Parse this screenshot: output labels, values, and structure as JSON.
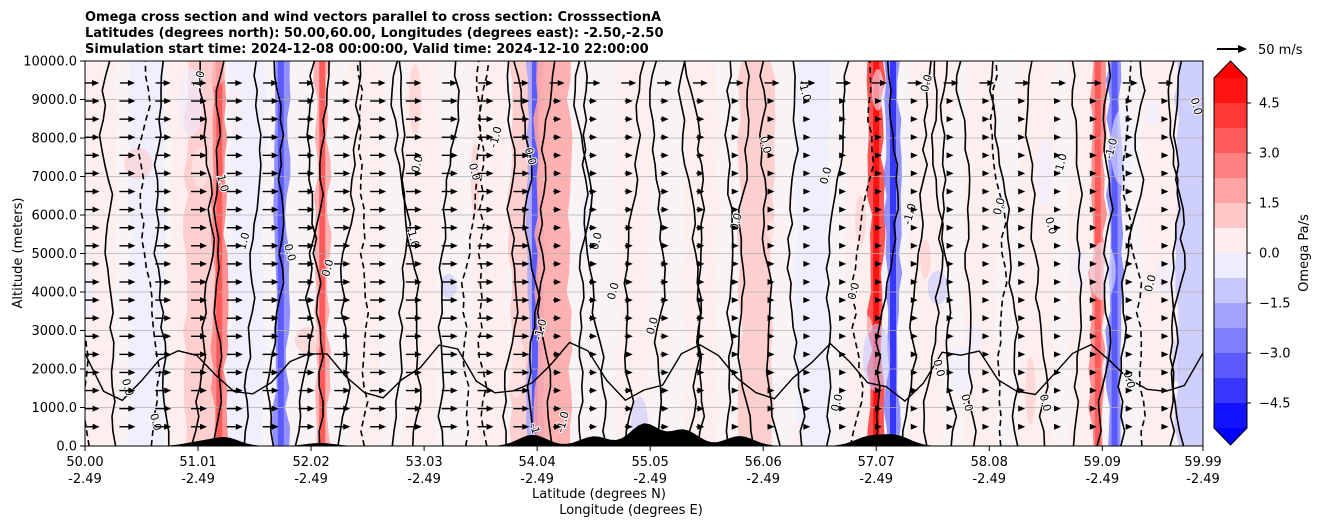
{
  "chart_data": {
    "type": "heatmap",
    "title_lines": [
      "Omega cross section and wind vectors parallel to cross section: CrosssectionA",
      "Latitudes (degrees north): 50.00,60.00, Longitudes (degrees east): -2.50,-2.50",
      "Simulation start time: 2024-12-08 00:00:00, Valid time: 2024-12-10 22:00:00"
    ],
    "ylabel": "Altitude (meters)",
    "xlabel_lines": [
      "Latitude (degrees N)",
      "Longitude (degrees E)"
    ],
    "ylim": [
      0,
      10000
    ],
    "yticks": [
      0,
      1000,
      2000,
      3000,
      4000,
      5000,
      6000,
      7000,
      8000,
      9000,
      10000
    ],
    "ytick_labels": [
      "0.0",
      "1000.0",
      "2000.0",
      "3000.0",
      "4000.0",
      "5000.0",
      "6000.0",
      "7000.0",
      "8000.0",
      "9000.0",
      "10000.0"
    ],
    "xlim": [
      50.0,
      59.99
    ],
    "xticks": [
      50.0,
      51.01,
      52.02,
      53.03,
      54.04,
      55.05,
      56.06,
      57.07,
      58.08,
      59.09,
      59.99
    ],
    "xtick_lat_labels": [
      "50.00",
      "51.01",
      "52.02",
      "53.03",
      "54.04",
      "55.05",
      "56.06",
      "57.07",
      "58.08",
      "59.09",
      "59.99"
    ],
    "xtick_lon_labels": [
      "-2.49",
      "-2.49",
      "-2.49",
      "-2.49",
      "-2.49",
      "-2.49",
      "-2.49",
      "-2.49",
      "-2.49",
      "-2.49",
      "-2.49"
    ],
    "grid": "horizontal",
    "colorbar": {
      "label": "Omega Pa/s",
      "range": [
        -5.25,
        5.25
      ],
      "ticks": [
        -4.5,
        -3.0,
        -1.5,
        0.0,
        1.5,
        3.0,
        4.5
      ],
      "tick_labels": [
        "−4.5",
        "−3.0",
        "−1.5",
        "0.0",
        "1.5",
        "3.0",
        "4.5"
      ],
      "colormap": "bwr",
      "extend": "both"
    },
    "quiver_key": {
      "label": "50 m/s",
      "value": 50
    },
    "contour_levels": [
      -1.0,
      0.0,
      1.0
    ],
    "contour_labels": [
      "-1.0",
      "0.0",
      "1.0"
    ],
    "strong_wind_below_m": 9800,
    "strong_wind_lat_max": 53.9,
    "terrain_peaks": [
      {
        "lat": 51.0,
        "height": 90
      },
      {
        "lat": 51.25,
        "height": 220
      },
      {
        "lat": 52.1,
        "height": 80
      },
      {
        "lat": 54.0,
        "height": 290
      },
      {
        "lat": 54.55,
        "height": 250
      },
      {
        "lat": 55.0,
        "height": 580
      },
      {
        "lat": 55.35,
        "height": 420
      },
      {
        "lat": 55.85,
        "height": 260
      },
      {
        "lat": 57.0,
        "height": 230
      },
      {
        "lat": 57.25,
        "height": 260
      }
    ],
    "omega_columns": [
      {
        "lat": 50.15,
        "value": 0.3
      },
      {
        "lat": 50.55,
        "value": -0.5
      },
      {
        "lat": 50.9,
        "value": 0.6
      },
      {
        "lat": 51.05,
        "value": 1.4
      },
      {
        "lat": 51.2,
        "value": 2.4
      },
      {
        "lat": 51.45,
        "value": -0.6
      },
      {
        "lat": 51.75,
        "value": -2.4
      },
      {
        "lat": 52.12,
        "value": 2.0
      },
      {
        "lat": 52.5,
        "value": 0.3
      },
      {
        "lat": 53.0,
        "value": 0.5
      },
      {
        "lat": 53.6,
        "value": 0.3
      },
      {
        "lat": 53.95,
        "value": 1.2
      },
      {
        "lat": 54.02,
        "value": -2.2
      },
      {
        "lat": 54.18,
        "value": 1.5
      },
      {
        "lat": 54.9,
        "value": 0.4
      },
      {
        "lat": 55.5,
        "value": 0.3
      },
      {
        "lat": 56.0,
        "value": 0.8
      },
      {
        "lat": 56.5,
        "value": -0.4
      },
      {
        "lat": 56.95,
        "value": 0.5
      },
      {
        "lat": 57.07,
        "value": 4.2
      },
      {
        "lat": 57.22,
        "value": -3.0
      },
      {
        "lat": 57.52,
        "value": 0.3
      },
      {
        "lat": 58.0,
        "value": 0.6
      },
      {
        "lat": 58.5,
        "value": 0.3
      },
      {
        "lat": 58.95,
        "value": 0.4
      },
      {
        "lat": 59.05,
        "value": 2.4
      },
      {
        "lat": 59.2,
        "value": -2.5
      },
      {
        "lat": 59.6,
        "value": 0.3
      },
      {
        "lat": 59.9,
        "value": -0.8
      }
    ],
    "contour_label_positions": [
      {
        "lat": 51.05,
        "alt": 9500,
        "text": "1.0"
      },
      {
        "lat": 51.2,
        "alt": 6800,
        "text": "1.0"
      },
      {
        "lat": 51.45,
        "alt": 5300,
        "text": "1.0"
      },
      {
        "lat": 51.8,
        "alt": 5000,
        "text": "0.0"
      },
      {
        "lat": 52.2,
        "alt": 4600,
        "text": "0.0"
      },
      {
        "lat": 52.9,
        "alt": 5400,
        "text": "-1.0"
      },
      {
        "lat": 53.0,
        "alt": 7300,
        "text": "0.0"
      },
      {
        "lat": 53.45,
        "alt": 7100,
        "text": "0.0"
      },
      {
        "lat": 53.7,
        "alt": 8000,
        "text": "-1.0"
      },
      {
        "lat": 53.95,
        "alt": 7500,
        "text": "0.0"
      },
      {
        "lat": 54.6,
        "alt": 5300,
        "text": "0.0"
      },
      {
        "lat": 54.75,
        "alt": 4000,
        "text": "0.0"
      },
      {
        "lat": 54.1,
        "alt": 3000,
        "text": "-1.0"
      },
      {
        "lat": 55.1,
        "alt": 3100,
        "text": "0.0"
      },
      {
        "lat": 54.0,
        "alt": 300,
        "text": "-1.0"
      },
      {
        "lat": 54.3,
        "alt": 600,
        "text": "-1.0"
      },
      {
        "lat": 55.85,
        "alt": 5800,
        "text": "0.0"
      },
      {
        "lat": 56.05,
        "alt": 7800,
        "text": "0.0"
      },
      {
        "lat": 56.4,
        "alt": 9200,
        "text": "-1.0"
      },
      {
        "lat": 56.65,
        "alt": 7000,
        "text": "0.0"
      },
      {
        "lat": 56.75,
        "alt": 1100,
        "text": "0.0"
      },
      {
        "lat": 56.9,
        "alt": 4000,
        "text": "0.0"
      },
      {
        "lat": 57.4,
        "alt": 6000,
        "text": "-1.0"
      },
      {
        "lat": 57.55,
        "alt": 9400,
        "text": "0.0"
      },
      {
        "lat": 57.6,
        "alt": 2000,
        "text": "0.0"
      },
      {
        "lat": 57.85,
        "alt": 1100,
        "text": "0.0"
      },
      {
        "lat": 58.2,
        "alt": 6200,
        "text": "0.0"
      },
      {
        "lat": 58.55,
        "alt": 1100,
        "text": "0.0"
      },
      {
        "lat": 58.6,
        "alt": 5700,
        "text": "0.0"
      },
      {
        "lat": 58.75,
        "alt": 7300,
        "text": "-1.0"
      },
      {
        "lat": 59.2,
        "alt": 7700,
        "text": "-1.0"
      },
      {
        "lat": 59.3,
        "alt": 1700,
        "text": "0.0"
      },
      {
        "lat": 59.55,
        "alt": 4200,
        "text": "0.0"
      },
      {
        "lat": 59.9,
        "alt": 8800,
        "text": "0.0"
      },
      {
        "lat": 50.35,
        "alt": 1500,
        "text": "0.0"
      },
      {
        "lat": 50.6,
        "alt": 600,
        "text": "0.0"
      }
    ]
  }
}
